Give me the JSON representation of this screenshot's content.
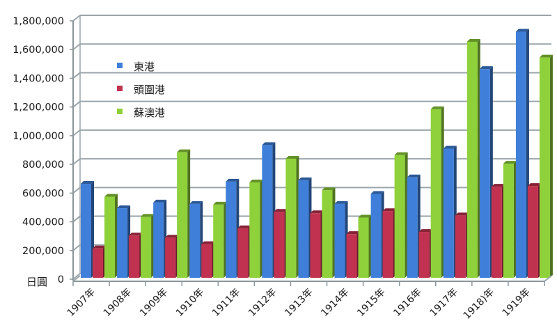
{
  "chart_data": {
    "type": "bar",
    "title": "",
    "xlabel": "",
    "ylabel": "日圓",
    "ylim": [
      0,
      1800000
    ],
    "yticks": [
      0,
      200000,
      400000,
      600000,
      800000,
      1000000,
      1200000,
      1400000,
      1600000,
      1800000
    ],
    "ytick_labels": [
      "0",
      "200,000",
      "400,000",
      "600,000",
      "800,000",
      "1,000,000",
      "1,200,000",
      "1,400,000",
      "1,600,000",
      "1,800,000"
    ],
    "grid": true,
    "style": "3d-clustered-column",
    "legend_position": "upper-left-inside",
    "categories": [
      "1907年",
      "1908年",
      "1909年",
      "1910年",
      "1911年",
      "1912年",
      "1913年",
      "1914年",
      "1915年",
      "1916年",
      "1917年",
      "1918)年",
      "1919年"
    ],
    "series": [
      {
        "name": "東港",
        "color": "#3f7fd9",
        "values": [
          650000,
          480000,
          520000,
          510000,
          665000,
          920000,
          675000,
          510000,
          580000,
          695000,
          895000,
          1450000,
          1710000
        ]
      },
      {
        "name": "頭圍港",
        "color": "#c0324f",
        "values": [
          200000,
          290000,
          275000,
          230000,
          340000,
          455000,
          445000,
          300000,
          460000,
          315000,
          430000,
          630000,
          635000
        ]
      },
      {
        "name": "蘇澳港",
        "color": "#8fd13a",
        "values": [
          560000,
          420000,
          870000,
          505000,
          660000,
          825000,
          605000,
          415000,
          850000,
          1170000,
          1640000,
          790000,
          1530000
        ]
      }
    ]
  },
  "axis": {
    "unit_label": "日圓"
  },
  "legend": {
    "items": [
      {
        "label": "東港",
        "color": "#3f7fd9"
      },
      {
        "label": "頭圍港",
        "color": "#c0324f"
      },
      {
        "label": "蘇澳港",
        "color": "#8fd13a"
      }
    ]
  }
}
